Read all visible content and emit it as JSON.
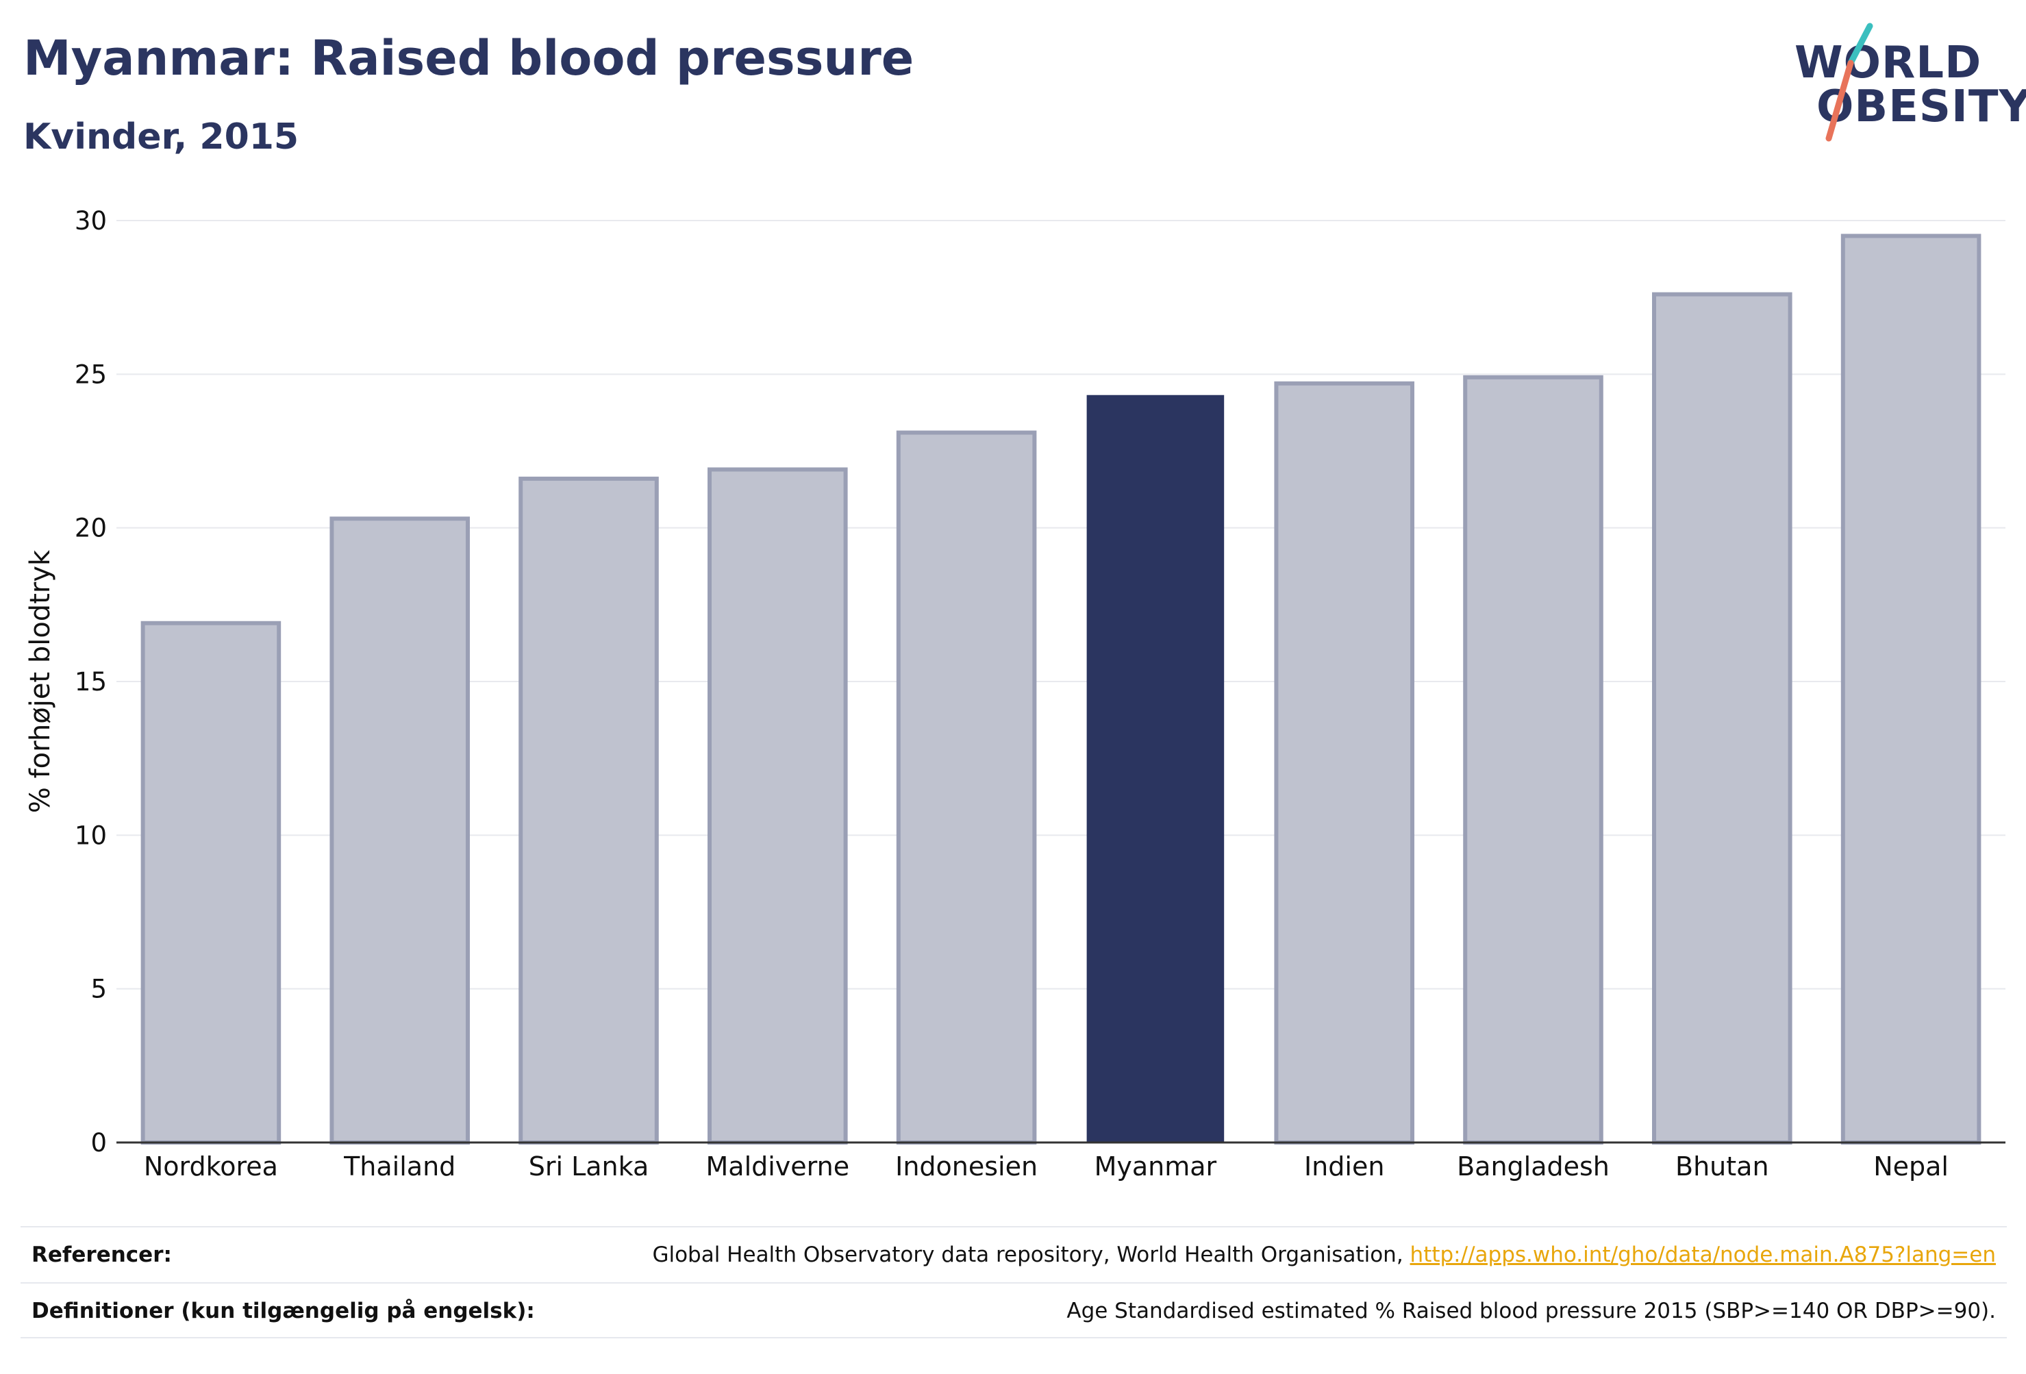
{
  "header": {
    "title": "Myanmar: Raised blood pressure",
    "subtitle": "Kvinder, 2015"
  },
  "logo": {
    "line1": "WORLD",
    "line2": "OBESITY",
    "accent_teal": "#3bbfbf",
    "accent_coral": "#e8735a"
  },
  "chart_data": {
    "type": "bar",
    "categories": [
      "Nordkorea",
      "Thailand",
      "Sri Lanka",
      "Maldiverne",
      "Indonesien",
      "Myanmar",
      "Indien",
      "Bangladesh",
      "Bhutan",
      "Nepal"
    ],
    "values": [
      16.9,
      20.3,
      21.6,
      21.9,
      23.1,
      24.3,
      24.7,
      24.9,
      27.6,
      29.5
    ],
    "highlight": "Myanmar",
    "ylabel": "% forhøjet blodtryk",
    "xlabel": "",
    "ylim": [
      0,
      30
    ],
    "yticks": [
      0,
      5,
      10,
      15,
      20,
      25,
      30
    ],
    "grid": true,
    "colors": {
      "highlight": "#2b3560",
      "default_fill": "#bfc2cf",
      "default_stroke": "#9a9fb5"
    }
  },
  "footer": {
    "references_label": "Referencer:",
    "references_text": "Global Health Observatory data repository, World Health Organisation, ",
    "references_link": "http://apps.who.int/gho/data/node.main.A875?lang=en",
    "definitions_label": "Definitioner (kun tilgængelig på engelsk):",
    "definitions_text": "Age Standardised estimated % Raised blood pressure 2015 (SBP>=140 OR DBP>=90)."
  }
}
